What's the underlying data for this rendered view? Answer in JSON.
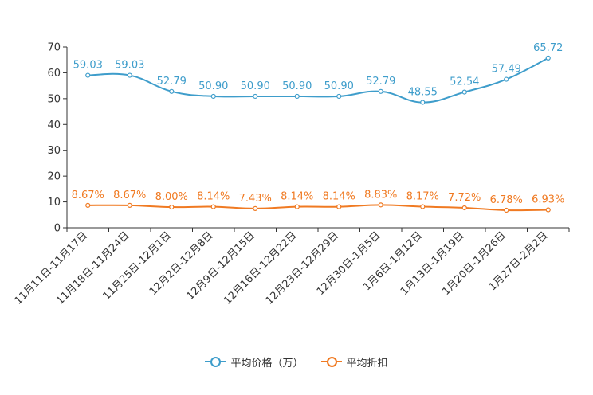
{
  "chart_data": {
    "type": "line",
    "title": "",
    "xlabel": "",
    "ylabel": "",
    "ylim": [
      0,
      70
    ],
    "yticks": [
      0,
      10,
      20,
      30,
      40,
      50,
      60,
      70
    ],
    "grid": false,
    "legend_position": "bottom-center",
    "categories": [
      "11月11日-11月17日",
      "11月18日-11月24日",
      "11月25日-12月1日",
      "12月2日-12月8日",
      "12月9日-12月15日",
      "12月16日-12月22日",
      "12月23日-12月29日",
      "12月30日-1月5日",
      "1月6日-1月12日",
      "1月13日-1月19日",
      "1月20日-1月26日",
      "1月27日-2月2日"
    ],
    "series": [
      {
        "name": "平均价格（万）",
        "color": "#3e9dcb",
        "values": [
          59.03,
          59.03,
          52.79,
          50.9,
          50.9,
          50.9,
          50.9,
          52.79,
          48.55,
          52.54,
          57.49,
          65.72
        ],
        "labels": [
          "59.03",
          "59.03",
          "52.79",
          "50.90",
          "50.90",
          "50.90",
          "50.90",
          "52.79",
          "48.55",
          "52.54",
          "57.49",
          "65.72"
        ]
      },
      {
        "name": "平均折扣",
        "color": "#f07a22",
        "values": [
          8.67,
          8.67,
          8.0,
          8.14,
          7.43,
          8.14,
          8.14,
          8.83,
          8.17,
          7.72,
          6.78,
          6.93
        ],
        "labels": [
          "8.67%",
          "8.67%",
          "8.00%",
          "8.14%",
          "7.43%",
          "8.14%",
          "8.14%",
          "8.83%",
          "8.17%",
          "7.72%",
          "6.78%",
          "6.93%"
        ]
      }
    ]
  }
}
